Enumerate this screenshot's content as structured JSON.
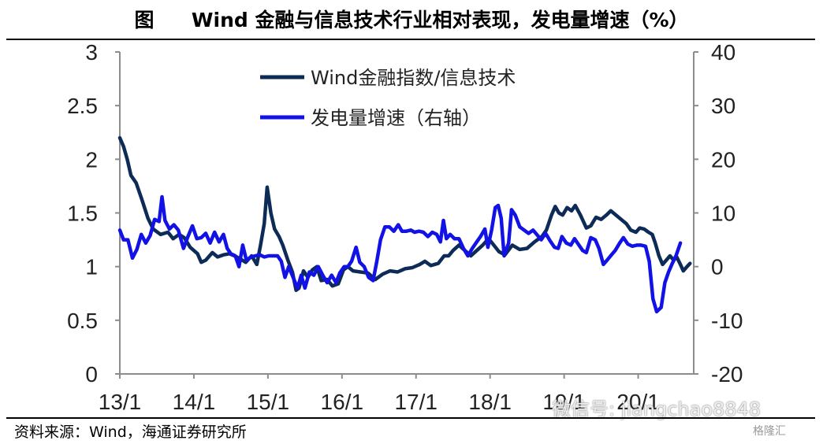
{
  "header": {
    "figure_label": "图",
    "title": "Wind 金融与信息技术行业相对表现，发电量增速（%）"
  },
  "footer": {
    "source": "资料来源：Wind，海通证券研究所"
  },
  "watermark": {
    "text": "微信号: jiangchao8848",
    "corner_mark": "格隆汇"
  },
  "chart_data": {
    "type": "line",
    "x_ticks": [
      "13/1",
      "14/1",
      "15/1",
      "16/1",
      "17/1",
      "18/1",
      "19/1",
      "20/1"
    ],
    "x_tick_values": [
      2013,
      2014,
      2015,
      2016,
      2017,
      2018,
      2019,
      2020
    ],
    "x_range": [
      2013.0,
      2020.75
    ],
    "y_left": {
      "min": 0,
      "max": 3,
      "ticks": [
        "0",
        "0.5",
        "1",
        "1.5",
        "2",
        "2.5",
        "3"
      ]
    },
    "y_right": {
      "min": -20,
      "max": 40,
      "ticks": [
        "-20",
        "-10",
        "0",
        "10",
        "20",
        "30",
        "40"
      ]
    },
    "colors": {
      "ratio": "#0d2b57",
      "power": "#1212e6"
    },
    "legend_position": "top-center",
    "series": [
      {
        "name": "Wind金融指数/信息技术",
        "axis": "left",
        "points": [
          [
            2013.0,
            2.2
          ],
          [
            2013.05,
            2.12
          ],
          [
            2013.1,
            2.0
          ],
          [
            2013.15,
            1.85
          ],
          [
            2013.22,
            1.78
          ],
          [
            2013.3,
            1.62
          ],
          [
            2013.38,
            1.45
          ],
          [
            2013.45,
            1.35
          ],
          [
            2013.55,
            1.3
          ],
          [
            2013.65,
            1.32
          ],
          [
            2013.72,
            1.26
          ],
          [
            2013.8,
            1.3
          ],
          [
            2013.87,
            1.27
          ],
          [
            2013.95,
            1.18
          ],
          [
            2014.05,
            1.12
          ],
          [
            2014.1,
            1.04
          ],
          [
            2014.16,
            1.06
          ],
          [
            2014.25,
            1.13
          ],
          [
            2014.32,
            1.09
          ],
          [
            2014.4,
            1.11
          ],
          [
            2014.48,
            1.12
          ],
          [
            2014.55,
            1.1
          ],
          [
            2014.63,
            1.07
          ],
          [
            2014.7,
            1.04
          ],
          [
            2014.78,
            1.1
          ],
          [
            2014.85,
            1.02
          ],
          [
            2014.9,
            1.2
          ],
          [
            2014.95,
            1.4
          ],
          [
            2014.99,
            1.74
          ],
          [
            2015.04,
            1.5
          ],
          [
            2015.09,
            1.35
          ],
          [
            2015.15,
            1.28
          ],
          [
            2015.2,
            1.2
          ],
          [
            2015.27,
            1.06
          ],
          [
            2015.33,
            0.95
          ],
          [
            2015.38,
            0.78
          ],
          [
            2015.42,
            0.8
          ],
          [
            2015.48,
            0.96
          ],
          [
            2015.54,
            0.9
          ],
          [
            2015.6,
            0.97
          ],
          [
            2015.66,
            1.0
          ],
          [
            2015.72,
            0.87
          ],
          [
            2015.8,
            0.88
          ],
          [
            2015.87,
            0.82
          ],
          [
            2015.95,
            0.84
          ],
          [
            2016.02,
            0.97
          ],
          [
            2016.08,
            1.0
          ],
          [
            2016.15,
            0.96
          ],
          [
            2016.25,
            0.95
          ],
          [
            2016.35,
            0.94
          ],
          [
            2016.45,
            0.88
          ],
          [
            2016.55,
            0.93
          ],
          [
            2016.65,
            0.96
          ],
          [
            2016.75,
            0.95
          ],
          [
            2016.85,
            0.98
          ],
          [
            2016.95,
            0.99
          ],
          [
            2017.05,
            1.02
          ],
          [
            2017.12,
            1.05
          ],
          [
            2017.2,
            1.01
          ],
          [
            2017.3,
            1.03
          ],
          [
            2017.38,
            1.1
          ],
          [
            2017.44,
            1.1
          ],
          [
            2017.5,
            1.15
          ],
          [
            2017.58,
            1.2
          ],
          [
            2017.66,
            1.15
          ],
          [
            2017.74,
            1.1
          ],
          [
            2017.82,
            1.15
          ],
          [
            2017.9,
            1.2
          ],
          [
            2017.98,
            1.26
          ],
          [
            2018.05,
            1.2
          ],
          [
            2018.12,
            1.14
          ],
          [
            2018.2,
            1.11
          ],
          [
            2018.3,
            1.2
          ],
          [
            2018.4,
            1.16
          ],
          [
            2018.5,
            1.17
          ],
          [
            2018.6,
            1.23
          ],
          [
            2018.7,
            1.28
          ],
          [
            2018.76,
            1.34
          ],
          [
            2018.83,
            1.48
          ],
          [
            2018.88,
            1.56
          ],
          [
            2018.93,
            1.5
          ],
          [
            2018.98,
            1.48
          ],
          [
            2019.04,
            1.55
          ],
          [
            2019.1,
            1.52
          ],
          [
            2019.15,
            1.57
          ],
          [
            2019.22,
            1.48
          ],
          [
            2019.3,
            1.36
          ],
          [
            2019.36,
            1.38
          ],
          [
            2019.43,
            1.46
          ],
          [
            2019.5,
            1.44
          ],
          [
            2019.57,
            1.48
          ],
          [
            2019.63,
            1.52
          ],
          [
            2019.7,
            1.48
          ],
          [
            2019.77,
            1.44
          ],
          [
            2019.84,
            1.4
          ],
          [
            2019.9,
            1.34
          ],
          [
            2019.97,
            1.32
          ],
          [
            2020.02,
            1.36
          ],
          [
            2020.08,
            1.35
          ],
          [
            2020.14,
            1.32
          ],
          [
            2020.19,
            1.3
          ],
          [
            2020.23,
            1.22
          ],
          [
            2020.28,
            1.1
          ],
          [
            2020.33,
            1.02
          ],
          [
            2020.38,
            1.06
          ],
          [
            2020.43,
            1.1
          ],
          [
            2020.48,
            1.06
          ],
          [
            2020.52,
            1.09
          ],
          [
            2020.57,
            1.02
          ],
          [
            2020.61,
            0.96
          ],
          [
            2020.66,
            1.0
          ],
          [
            2020.7,
            1.03
          ]
        ]
      },
      {
        "name": "发电量增速（右轴）",
        "axis": "right",
        "points": [
          [
            2013.0,
            6.8
          ],
          [
            2013.05,
            5.0
          ],
          [
            2013.11,
            5.0
          ],
          [
            2013.17,
            1.6
          ],
          [
            2013.23,
            3.2
          ],
          [
            2013.29,
            6.0
          ],
          [
            2013.35,
            4.4
          ],
          [
            2013.41,
            5.8
          ],
          [
            2013.47,
            8.8
          ],
          [
            2013.53,
            8.4
          ],
          [
            2013.57,
            13.0
          ],
          [
            2013.61,
            8.6
          ],
          [
            2013.67,
            7.0
          ],
          [
            2013.73,
            7.8
          ],
          [
            2013.79,
            6.8
          ],
          [
            2013.86,
            3.4
          ],
          [
            2013.92,
            5.6
          ],
          [
            2013.98,
            7.6
          ],
          [
            2014.04,
            5.2
          ],
          [
            2014.1,
            5.4
          ],
          [
            2014.16,
            6.2
          ],
          [
            2014.22,
            4.4
          ],
          [
            2014.28,
            6.4
          ],
          [
            2014.34,
            4.6
          ],
          [
            2014.4,
            6.0
          ],
          [
            2014.45,
            3.4
          ],
          [
            2014.5,
            2.4
          ],
          [
            2014.56,
            2.0
          ],
          [
            2014.61,
            0.0
          ],
          [
            2014.66,
            4.0
          ],
          [
            2014.71,
            1.2
          ],
          [
            2014.77,
            1.8
          ],
          [
            2014.83,
            2.0
          ],
          [
            2014.89,
            2.2
          ],
          [
            2014.95,
            1.8
          ],
          [
            2015.01,
            2.0
          ],
          [
            2015.07,
            2.0
          ],
          [
            2015.13,
            2.0
          ],
          [
            2015.18,
            1.0
          ],
          [
            2015.23,
            -2.0
          ],
          [
            2015.28,
            0.0
          ],
          [
            2015.34,
            -2.0
          ],
          [
            2015.4,
            -4.0
          ],
          [
            2015.45,
            -1.6
          ],
          [
            2015.5,
            -4.0
          ],
          [
            2015.56,
            -1.0
          ],
          [
            2015.62,
            -1.6
          ],
          [
            2015.68,
            0.0
          ],
          [
            2015.74,
            -1.6
          ],
          [
            2015.8,
            -3.0
          ],
          [
            2015.86,
            -1.6
          ],
          [
            2015.92,
            -3.0
          ],
          [
            2015.97,
            -1.2
          ],
          [
            2016.03,
            0.0
          ],
          [
            2016.08,
            0.0
          ],
          [
            2016.13,
            1.0
          ],
          [
            2016.19,
            3.6
          ],
          [
            2016.24,
            0.8
          ],
          [
            2016.3,
            0.0
          ],
          [
            2016.36,
            -2.0
          ],
          [
            2016.42,
            -2.6
          ],
          [
            2016.47,
            1.0
          ],
          [
            2016.52,
            5.0
          ],
          [
            2016.58,
            7.4
          ],
          [
            2016.64,
            7.4
          ],
          [
            2016.7,
            6.6
          ],
          [
            2016.76,
            7.8
          ],
          [
            2016.81,
            6.6
          ],
          [
            2016.87,
            6.6
          ],
          [
            2016.93,
            6.8
          ],
          [
            2016.98,
            6.4
          ],
          [
            2017.04,
            6.6
          ],
          [
            2017.1,
            6.4
          ],
          [
            2017.16,
            5.6
          ],
          [
            2017.22,
            6.4
          ],
          [
            2017.28,
            6.0
          ],
          [
            2017.33,
            4.6
          ],
          [
            2017.37,
            8.6
          ],
          [
            2017.41,
            5.2
          ],
          [
            2017.46,
            6.0
          ],
          [
            2017.52,
            5.2
          ],
          [
            2017.58,
            5.2
          ],
          [
            2017.64,
            3.4
          ],
          [
            2017.7,
            2.0
          ],
          [
            2017.76,
            3.4
          ],
          [
            2017.81,
            4.4
          ],
          [
            2017.87,
            5.6
          ],
          [
            2017.93,
            7.0
          ],
          [
            2017.97,
            3.6
          ],
          [
            2018.02,
            6.8
          ],
          [
            2018.07,
            11.0
          ],
          [
            2018.11,
            11.4
          ],
          [
            2018.15,
            9.0
          ],
          [
            2018.19,
            2.0
          ],
          [
            2018.25,
            4.4
          ],
          [
            2018.29,
            10.6
          ],
          [
            2018.34,
            9.6
          ],
          [
            2018.4,
            7.4
          ],
          [
            2018.46,
            6.8
          ],
          [
            2018.52,
            6.2
          ],
          [
            2018.58,
            6.8
          ],
          [
            2018.63,
            6.0
          ],
          [
            2018.69,
            5.0
          ],
          [
            2018.75,
            6.2
          ],
          [
            2018.81,
            4.8
          ],
          [
            2018.87,
            3.6
          ],
          [
            2018.92,
            3.4
          ],
          [
            2018.97,
            5.6
          ],
          [
            2019.03,
            4.4
          ],
          [
            2019.09,
            4.0
          ],
          [
            2019.14,
            5.2
          ],
          [
            2019.2,
            4.0
          ],
          [
            2019.25,
            3.0
          ],
          [
            2019.3,
            2.6
          ],
          [
            2019.36,
            5.4
          ],
          [
            2019.42,
            5.0
          ],
          [
            2019.47,
            3.4
          ],
          [
            2019.53,
            0.4
          ],
          [
            2019.58,
            1.2
          ],
          [
            2019.64,
            2.2
          ],
          [
            2019.69,
            3.0
          ],
          [
            2019.75,
            4.4
          ],
          [
            2019.8,
            5.4
          ],
          [
            2019.86,
            4.2
          ],
          [
            2019.92,
            3.8
          ],
          [
            2019.98,
            4.0
          ],
          [
            2020.04,
            4.0
          ],
          [
            2020.1,
            3.8
          ],
          [
            2020.15,
            1.0
          ],
          [
            2020.2,
            -6.0
          ],
          [
            2020.25,
            -8.4
          ],
          [
            2020.31,
            -7.6
          ],
          [
            2020.36,
            -3.0
          ],
          [
            2020.41,
            -1.0
          ],
          [
            2020.46,
            0.6
          ],
          [
            2020.51,
            2.0
          ],
          [
            2020.57,
            4.4
          ]
        ]
      }
    ]
  }
}
